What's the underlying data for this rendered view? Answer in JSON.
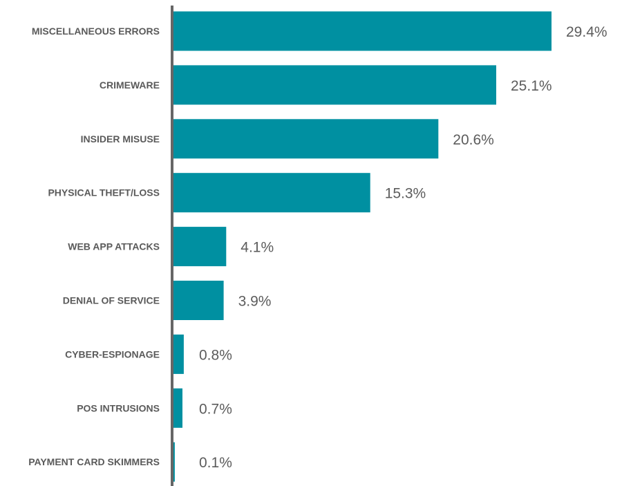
{
  "chart_data": {
    "type": "bar",
    "orientation": "horizontal",
    "categories": [
      "MISCELLANEOUS ERRORS",
      "CRIMEWARE",
      "INSIDER MISUSE",
      "PHYSICAL THEFT/LOSS",
      "WEB APP ATTACKS",
      "DENIAL OF SERVICE",
      "CYBER-ESPIONAGE",
      "POS INTRUSIONS",
      "PAYMENT CARD SKIMMERS"
    ],
    "values": [
      29.4,
      25.1,
      20.6,
      15.3,
      4.1,
      3.9,
      0.8,
      0.7,
      0.1
    ],
    "value_labels": [
      "29.4%",
      "25.1%",
      "20.6%",
      "15.3%",
      "4.1%",
      "3.9%",
      "0.8%",
      "0.7%",
      "0.1%"
    ],
    "unit": "%",
    "title": "",
    "xlabel": "",
    "ylabel": "",
    "xlim": [
      0,
      29.4
    ],
    "grid": false,
    "legend": "none",
    "colors": {
      "bar": "#0090a1",
      "axis": "#666666",
      "category_label": "#5a5a5a",
      "value_label": "#5c5c5c"
    }
  }
}
